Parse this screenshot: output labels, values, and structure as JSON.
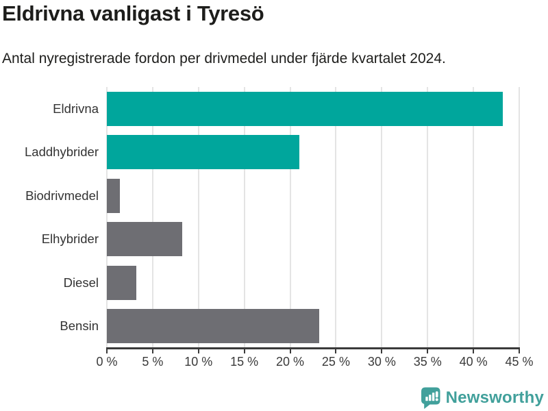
{
  "chart_data": {
    "type": "bar",
    "orientation": "horizontal",
    "title": "Eldrivna vanligast i Tyresö",
    "subtitle": "Antal nyregistrerade fordon per drivmedel under fjärde kvartalet 2024.",
    "categories": [
      "Eldrivna",
      "Laddhybrider",
      "Biodrivmedel",
      "Elhybrider",
      "Diesel",
      "Bensin"
    ],
    "values": [
      43.2,
      21.0,
      1.4,
      8.2,
      3.2,
      23.2
    ],
    "unit": "percent of newly registered vehicles",
    "xlim": [
      0,
      45
    ],
    "x_ticks": [
      0,
      5,
      10,
      15,
      20,
      25,
      30,
      35,
      40,
      45
    ],
    "x_tick_labels": [
      "0 %",
      "5 %",
      "10 %",
      "15 %",
      "20 %",
      "25 %",
      "30 %",
      "35 %",
      "40 %",
      "45 %"
    ],
    "grid": "vertical-only",
    "legend": "none",
    "colors": {
      "highlight": "#00A69C",
      "default": "#6E6E73",
      "bar_colors": [
        "#00A69C",
        "#00A69C",
        "#6E6E73",
        "#6E6E73",
        "#6E6E73",
        "#6E6E73"
      ],
      "axis": "#3a3a3a",
      "gridline": "#e4e4e4"
    }
  },
  "footer": {
    "brand": "Newsworthy",
    "brand_color": "#41A09B",
    "logo_icon": "bar-chart-speech-bubble-icon"
  }
}
